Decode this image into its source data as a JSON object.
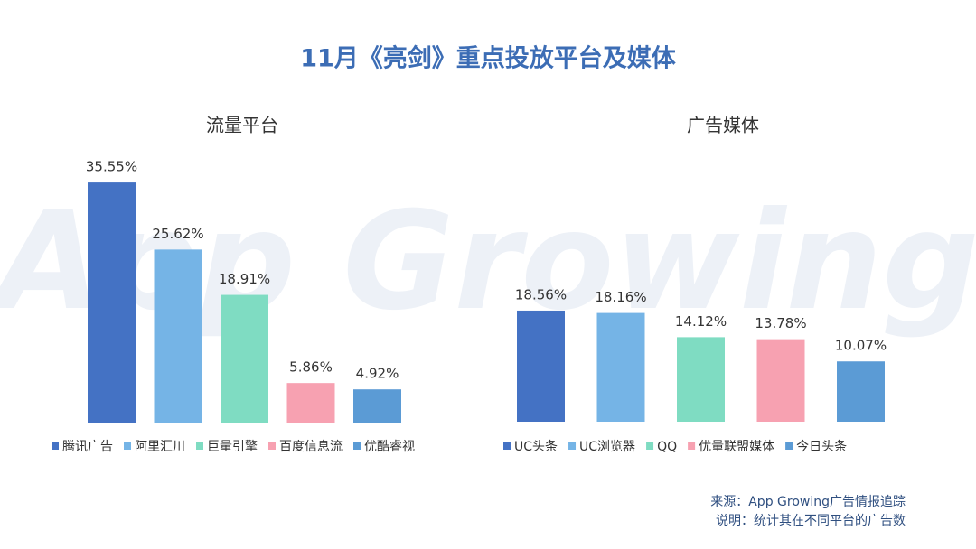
{
  "title": "11月《亮剑》重点投放平台及媒体",
  "watermark": "App Growing",
  "chart_data": [
    {
      "type": "bar",
      "title": "流量平台",
      "categories": [
        "腾讯广告",
        "阿里汇川",
        "巨量引擎",
        "百度信息流",
        "优酷睿视"
      ],
      "values": [
        35.55,
        25.62,
        18.91,
        5.86,
        4.92
      ],
      "value_labels": [
        "35.55%",
        "25.62%",
        "18.91%",
        "5.86%",
        "4.92%"
      ],
      "colors": [
        "#4472c4",
        "#75b4e6",
        "#7fdcc2",
        "#f7a1b1",
        "#5b9bd5"
      ],
      "legend": "bottom"
    },
    {
      "type": "bar",
      "title": "广告媒体",
      "categories": [
        "UC头条",
        "UC浏览器",
        "QQ",
        "优量联盟媒体",
        "今日头条"
      ],
      "values": [
        18.56,
        18.16,
        14.12,
        13.78,
        10.07
      ],
      "value_labels": [
        "18.56%",
        "18.16%",
        "14.12%",
        "13.78%",
        "10.07%"
      ],
      "colors": [
        "#4472c4",
        "#75b4e6",
        "#7fdcc2",
        "#f7a1b1",
        "#5b9bd5"
      ],
      "legend": "bottom"
    }
  ],
  "footer": {
    "source": "来源：App Growing广告情报追踪",
    "note": "说明：统计其在不同平台的广告数"
  }
}
